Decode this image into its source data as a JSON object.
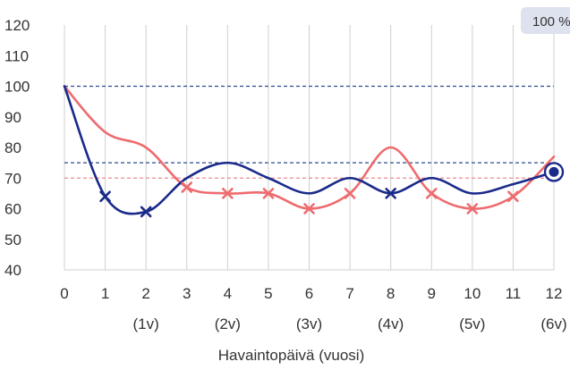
{
  "chart_data": {
    "type": "line",
    "x": [
      0,
      1,
      2,
      3,
      4,
      5,
      6,
      7,
      8,
      9,
      10,
      11,
      12
    ],
    "x_tick_labels": [
      "0",
      "1",
      "2",
      "3",
      "4",
      "5",
      "6",
      "7",
      "8",
      "9",
      "10",
      "11",
      "12"
    ],
    "x_sub_labels": [
      {
        "x": 2,
        "label": "(1v)"
      },
      {
        "x": 4,
        "label": "(2v)"
      },
      {
        "x": 6,
        "label": "(3v)"
      },
      {
        "x": 8,
        "label": "(4v)"
      },
      {
        "x": 10,
        "label": "(5v)"
      },
      {
        "x": 12,
        "label": "(6v)"
      }
    ],
    "xlabel": "Havaintopäivä (vuosi)",
    "ylabel": "",
    "ylim": [
      40,
      120
    ],
    "y_ticks": [
      40,
      50,
      60,
      70,
      80,
      90,
      100,
      110,
      120
    ],
    "grid": "vertical",
    "series": [
      {
        "color": "#1a2a8a",
        "smooth_values": [
          100,
          64,
          59,
          70,
          75,
          70,
          65,
          70,
          65,
          70,
          65,
          68,
          72
        ],
        "marked_values": [
          100,
          64,
          59,
          67,
          65,
          65,
          60,
          65,
          65,
          65,
          60,
          64,
          72
        ],
        "marker_indices": [
          1,
          2,
          8
        ]
      },
      {
        "color": "#ee6b6e",
        "smooth_values": [
          100,
          85,
          80,
          67,
          65,
          65,
          60,
          65,
          80,
          65,
          60,
          64,
          77
        ],
        "marked_values": [
          100,
          85,
          80,
          67,
          65,
          65,
          60,
          65,
          80,
          65,
          60,
          64,
          77
        ],
        "marker_indices": [
          3,
          4,
          5,
          6,
          7,
          9,
          10,
          11
        ]
      }
    ],
    "reference_lines": [
      {
        "y": 100,
        "color": "#2b4a8c"
      },
      {
        "y": 75,
        "color": "#2b4a8c"
      },
      {
        "y": 70,
        "color": "#ee8a8c"
      }
    ],
    "end_marker": {
      "x": 12,
      "y": 72,
      "color": "#1a2a8a"
    },
    "badge": {
      "label": "100 %",
      "color": "#dde2ee"
    }
  }
}
